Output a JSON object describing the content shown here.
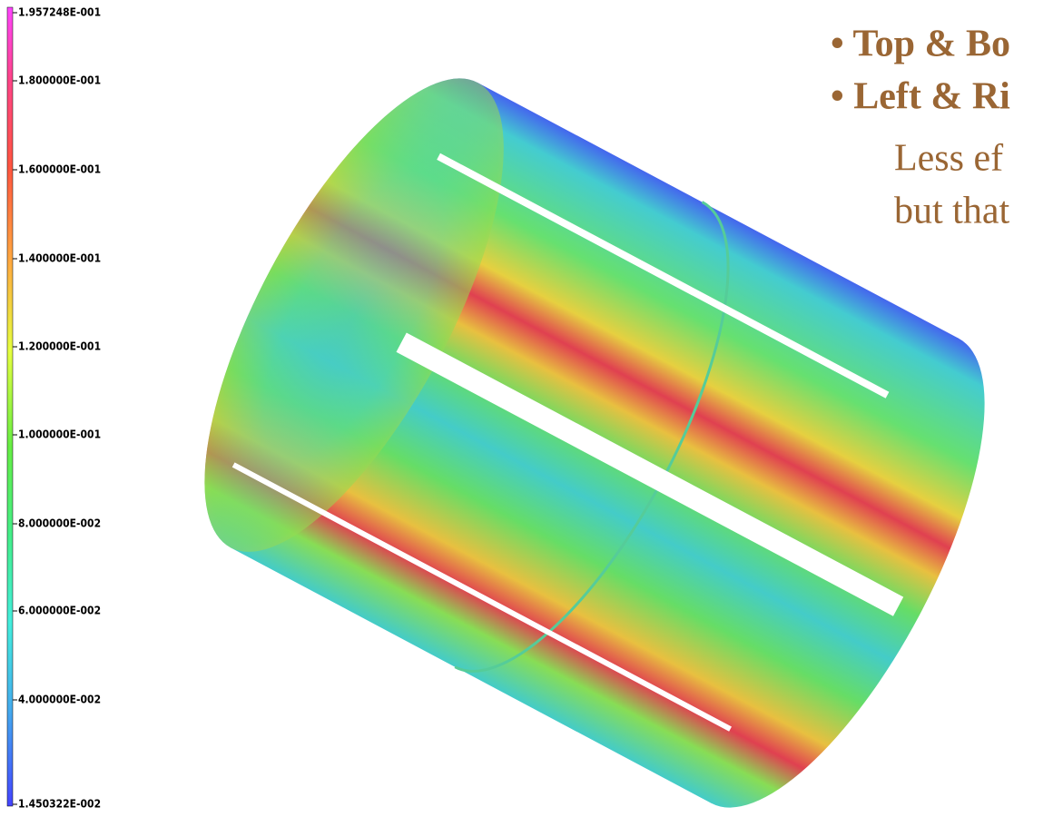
{
  "legend": {
    "labels": [
      "1.957248E-001",
      "1.800000E-001",
      "1.600000E-001",
      "1.400000E-001",
      "1.200000E-001",
      "1.000000E-001",
      "8.000000E-002",
      "6.000000E-002",
      "4.000000E-002",
      "1.450322E-002"
    ]
  },
  "text": {
    "lines": [
      "• Top & Bo",
      "• Left & Ri",
      "Less ef",
      "but that"
    ]
  }
}
